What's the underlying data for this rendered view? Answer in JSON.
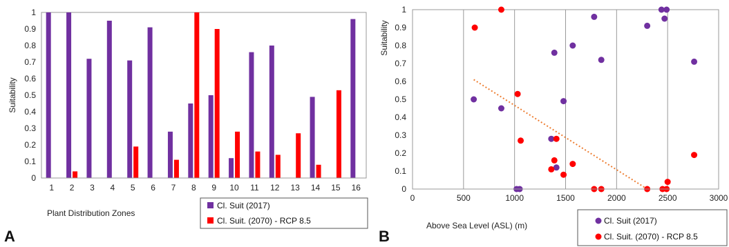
{
  "panels": {
    "a_label": "A",
    "b_label": "B"
  },
  "colors": {
    "purple": "#7030A0",
    "red": "#FF0000",
    "trend": "#ED7D31"
  },
  "chart_data": [
    {
      "type": "bar",
      "title": "",
      "xlabel": "Plant Distribution Zones",
      "ylabel": "Suitability",
      "ylim": [
        0,
        1
      ],
      "yticks": [
        "0",
        "0.1",
        "0.2",
        "0.3",
        "0.4",
        "0.5",
        "0.6",
        "0.7",
        "0.8",
        "0.9",
        "1"
      ],
      "categories": [
        "1",
        "2",
        "3",
        "4",
        "5",
        "6",
        "7",
        "8",
        "9",
        "10",
        "11",
        "12",
        "13",
        "14",
        "15",
        "16"
      ],
      "legend_position": "bottom-right",
      "grid": false,
      "series": [
        {
          "name": "Cl. Suit (2017)",
          "color": "#7030A0",
          "values": [
            1.0,
            1.0,
            0.72,
            0.95,
            0.71,
            0.91,
            0.28,
            0.45,
            0.5,
            0.12,
            0.76,
            0.8,
            0.0,
            0.49,
            0.0,
            0.96
          ]
        },
        {
          "name": "Cl. Suit. (2070) - RCP 8.5",
          "color": "#FF0000",
          "values": [
            0.0,
            0.04,
            0.0,
            0.0,
            0.19,
            0.0,
            0.11,
            1.0,
            0.9,
            0.28,
            0.16,
            0.14,
            0.27,
            0.08,
            0.53,
            0.0
          ]
        }
      ]
    },
    {
      "type": "scatter",
      "title": "",
      "xlabel": "Above Sea Level (ASL) (m)",
      "ylabel": "Suitability",
      "xlim": [
        0,
        3000
      ],
      "ylim": [
        0,
        1
      ],
      "xticks": [
        "0",
        "500",
        "1000",
        "1500",
        "2000",
        "2500",
        "3000"
      ],
      "yticks": [
        "0",
        "0.1",
        "0.2",
        "0.3",
        "0.4",
        "0.5",
        "0.6",
        "0.7",
        "0.8",
        "0.9",
        "1"
      ],
      "grid": "vertical",
      "legend_position": "bottom-right",
      "series": [
        {
          "name": "Cl. Suit (2017)",
          "color": "#7030A0",
          "points": [
            [
              600,
              0.5
            ],
            [
              870,
              0.45
            ],
            [
              1020,
              0.0
            ],
            [
              1050,
              0.0
            ],
            [
              1360,
              0.28
            ],
            [
              1390,
              0.76
            ],
            [
              1410,
              0.12
            ],
            [
              1480,
              0.49
            ],
            [
              1570,
              0.8
            ],
            [
              1780,
              0.96
            ],
            [
              1850,
              0.72
            ],
            [
              2300,
              0.91
            ],
            [
              2440,
              1.0
            ],
            [
              2470,
              0.95
            ],
            [
              2490,
              1.0
            ],
            [
              2760,
              0.71
            ]
          ]
        },
        {
          "name": "Cl. Suit. (2070) - RCP 8.5",
          "color": "#FF0000",
          "points": [
            [
              610,
              0.9
            ],
            [
              870,
              1.0
            ],
            [
              1030,
              0.53
            ],
            [
              1060,
              0.27
            ],
            [
              1360,
              0.11
            ],
            [
              1390,
              0.16
            ],
            [
              1410,
              0.28
            ],
            [
              1480,
              0.08
            ],
            [
              1570,
              0.14
            ],
            [
              1780,
              0.0
            ],
            [
              1850,
              0.0
            ],
            [
              2300,
              0.0
            ],
            [
              2450,
              0.0
            ],
            [
              2490,
              0.0
            ],
            [
              2500,
              0.04
            ],
            [
              2760,
              0.19
            ]
          ]
        }
      ],
      "trendline": {
        "series": "Cl. Suit. (2070) - RCP 8.5",
        "style": "dotted",
        "color": "#ED7D31",
        "x": [
          600,
          2300
        ],
        "y": [
          0.61,
          0.0
        ]
      }
    }
  ]
}
